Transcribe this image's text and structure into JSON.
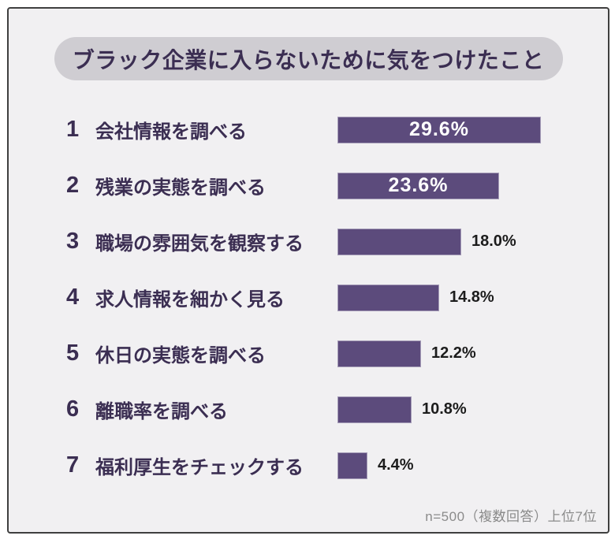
{
  "title": "ブラック企業に入らないために気をつけたこと",
  "footnote": "n=500（複数回答）上位7位",
  "colors": {
    "panel_bg": "#f1f0f2",
    "border": "#3f3f3f",
    "pill_bg": "#cfcdd2",
    "title_text": "#3b2e52",
    "bar": "#5c4b7c",
    "value_inside": "#ffffff",
    "value_outside": "#1c1c1c",
    "footnote_text": "#8b8b8b"
  },
  "chart_data": {
    "type": "bar",
    "orientation": "horizontal",
    "title": "ブラック企業に入らないために気をつけたこと",
    "note": "n=500（複数回答）上位7位",
    "unit": "%",
    "xlim": [
      0,
      30
    ],
    "categories": [
      "会社情報を調べる",
      "残業の実態を調べる",
      "職場の雰囲気を観察する",
      "求人情報を細かく見る",
      "休日の実態を調べる",
      "離職率を調べる",
      "福利厚生をチェックする"
    ],
    "values": [
      29.6,
      23.6,
      18.0,
      14.8,
      12.2,
      10.8,
      4.4
    ],
    "items": [
      {
        "rank": "1",
        "label": "会社情報を調べる",
        "value": 29.6,
        "value_label": "29.6%"
      },
      {
        "rank": "2",
        "label": "残業の実態を調べる",
        "value": 23.6,
        "value_label": "23.6%"
      },
      {
        "rank": "3",
        "label": "職場の雰囲気を観察する",
        "value": 18.0,
        "value_label": "18.0%"
      },
      {
        "rank": "4",
        "label": "求人情報を細かく見る",
        "value": 14.8,
        "value_label": "14.8%"
      },
      {
        "rank": "5",
        "label": "休日の実態を調べる",
        "value": 12.2,
        "value_label": "12.2%"
      },
      {
        "rank": "6",
        "label": "離職率を調べる",
        "value": 10.8,
        "value_label": "10.8%"
      },
      {
        "rank": "7",
        "label": "福利厚生をチェックする",
        "value": 4.4,
        "value_label": "4.4%"
      }
    ]
  }
}
